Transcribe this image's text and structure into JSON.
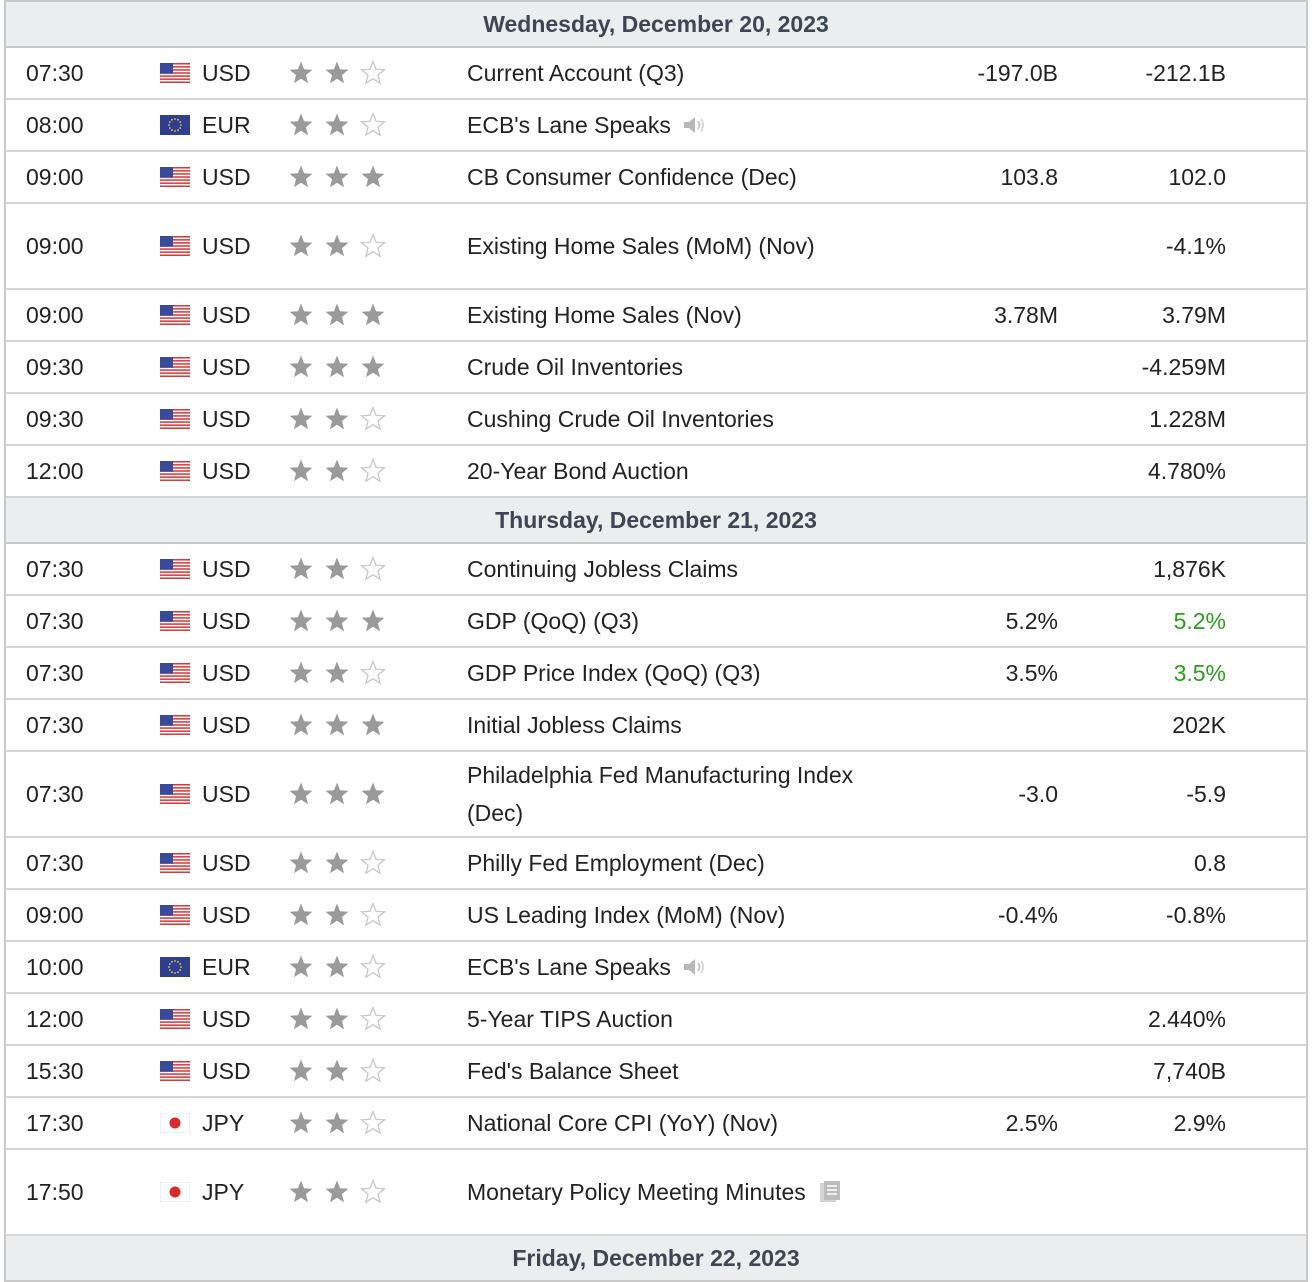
{
  "icons": {
    "flag_usd": "us-flag-icon",
    "flag_eur": "eu-flag-icon",
    "flag_jpy": "japan-flag-icon",
    "star_full": "star-filled-icon",
    "star_empty": "star-outline-icon",
    "speaker": "speaker-icon",
    "document": "document-icon"
  },
  "colors": {
    "header_bg": "#ecedef",
    "positive": "#2a9d1a",
    "star_filled": "#9a9a9a",
    "border": "#d5d5d5"
  },
  "days": [
    {
      "label": "Wednesday, December 20, 2023",
      "events": [
        {
          "time": "07:30",
          "currency": "USD",
          "importance": 2,
          "event": "Current Account (Q3)",
          "forecast": "-197.0B",
          "previous": "-212.1B"
        },
        {
          "time": "08:00",
          "currency": "EUR",
          "importance": 2,
          "event": "ECB's Lane Speaks",
          "icon": "speaker",
          "forecast": "",
          "previous": ""
        },
        {
          "time": "09:00",
          "currency": "USD",
          "importance": 3,
          "event": "CB Consumer Confidence (Dec)",
          "forecast": "103.8",
          "previous": "102.0"
        },
        {
          "time": "09:00",
          "currency": "USD",
          "importance": 2,
          "event": "Existing Home Sales (MoM) (Nov)",
          "forecast": "",
          "previous": "-4.1%",
          "tall": true
        },
        {
          "time": "09:00",
          "currency": "USD",
          "importance": 3,
          "event": "Existing Home Sales (Nov)",
          "forecast": "3.78M",
          "previous": "3.79M"
        },
        {
          "time": "09:30",
          "currency": "USD",
          "importance": 3,
          "event": "Crude Oil Inventories",
          "forecast": "",
          "previous": "-4.259M"
        },
        {
          "time": "09:30",
          "currency": "USD",
          "importance": 2,
          "event": "Cushing Crude Oil Inventories",
          "forecast": "",
          "previous": "1.228M"
        },
        {
          "time": "12:00",
          "currency": "USD",
          "importance": 2,
          "event": "20-Year Bond Auction",
          "forecast": "",
          "previous": "4.780%"
        }
      ]
    },
    {
      "label": "Thursday, December 21, 2023",
      "events": [
        {
          "time": "07:30",
          "currency": "USD",
          "importance": 2,
          "event": "Continuing Jobless Claims",
          "forecast": "",
          "previous": "1,876K"
        },
        {
          "time": "07:30",
          "currency": "USD",
          "importance": 3,
          "event": "GDP (QoQ) (Q3)",
          "forecast": "5.2%",
          "previous": "5.2%",
          "prev_up": true
        },
        {
          "time": "07:30",
          "currency": "USD",
          "importance": 2,
          "event": "GDP Price Index (QoQ) (Q3)",
          "forecast": "3.5%",
          "previous": "3.5%",
          "prev_up": true
        },
        {
          "time": "07:30",
          "currency": "USD",
          "importance": 3,
          "event": "Initial Jobless Claims",
          "forecast": "",
          "previous": "202K"
        },
        {
          "time": "07:30",
          "currency": "USD",
          "importance": 3,
          "event": "Philadelphia Fed Manufacturing Index (Dec)",
          "forecast": "-3.0",
          "previous": "-5.9",
          "tall": true
        },
        {
          "time": "07:30",
          "currency": "USD",
          "importance": 2,
          "event": "Philly Fed Employment (Dec)",
          "forecast": "",
          "previous": "0.8"
        },
        {
          "time": "09:00",
          "currency": "USD",
          "importance": 2,
          "event": "US Leading Index (MoM) (Nov)",
          "forecast": "-0.4%",
          "previous": "-0.8%"
        },
        {
          "time": "10:00",
          "currency": "EUR",
          "importance": 2,
          "event": "ECB's Lane Speaks",
          "icon": "speaker",
          "forecast": "",
          "previous": ""
        },
        {
          "time": "12:00",
          "currency": "USD",
          "importance": 2,
          "event": "5-Year TIPS Auction",
          "forecast": "",
          "previous": "2.440%"
        },
        {
          "time": "15:30",
          "currency": "USD",
          "importance": 2,
          "event": "Fed's Balance Sheet",
          "forecast": "",
          "previous": "7,740B"
        },
        {
          "time": "17:30",
          "currency": "JPY",
          "importance": 2,
          "event": "National Core CPI (YoY) (Nov)",
          "forecast": "2.5%",
          "previous": "2.9%"
        },
        {
          "time": "17:50",
          "currency": "JPY",
          "importance": 2,
          "event": "Monetary Policy Meeting Minutes",
          "icon": "document",
          "forecast": "",
          "previous": "",
          "tall": true
        }
      ]
    },
    {
      "label": "Friday, December 22, 2023",
      "events": []
    }
  ]
}
